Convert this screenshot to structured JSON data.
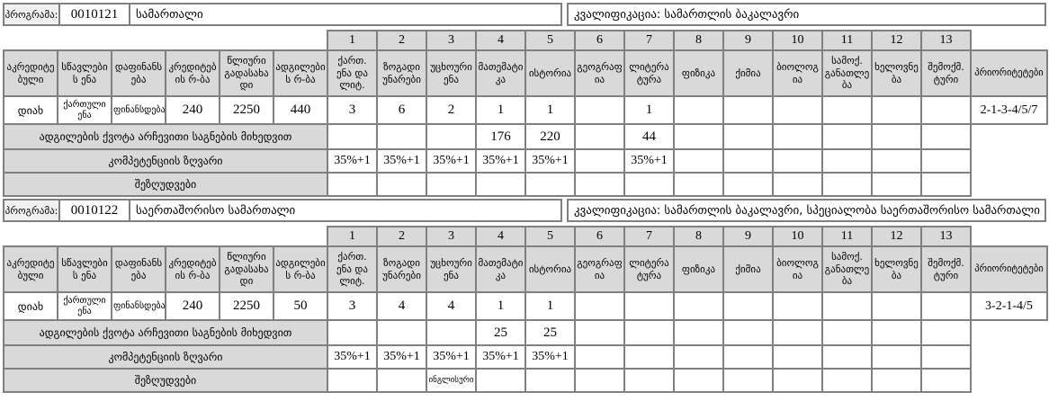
{
  "colors": {
    "header_cell_bg": "#d9d9d9",
    "program_label_bg": "#f0f0f0",
    "grid_border": "#808080",
    "cell_bg": "#ffffff",
    "text": "#000000"
  },
  "columns": {
    "info_headers": [
      "აკრედიტებული",
      "სწავლების ენა",
      "დაფინანსება",
      "კრედიტების რ-ბა",
      "წლიური გადასახადი",
      "ადგილების რ-ბა"
    ],
    "subject_numbers": [
      "1",
      "2",
      "3",
      "4",
      "5",
      "6",
      "7",
      "8",
      "9",
      "10",
      "11",
      "12",
      "13"
    ],
    "subject_headers": [
      "ქართ. ენა და ლიტ.",
      "ზოგადი უნარები",
      "უცხოური ენა",
      "მათემატიკა",
      "ისტორია",
      "გეოგრაფია",
      "ლიტერატურა",
      "ფიზიკა",
      "ქიმია",
      "ბიოლოგია",
      "სამოქ. განათლება",
      "ხელოვნება",
      "შემოქმ. ტური"
    ],
    "priorities_header": "პრიორიტეტები"
  },
  "row_labels": {
    "quota": "ადგილების ქვოტა არჩევითი საგნების მიხედვით",
    "threshold": "კომპეტენციის ზღვარი",
    "restrictions": "შეზღუდვები"
  },
  "tables": [
    {
      "program_label": "პროგრამა:",
      "code": "0010121",
      "name": "სამართალი",
      "qualification": "კვალიფიკაცია: სამართლის ბაკალავრი",
      "info_values": [
        "დიახ",
        "ქართული ენა",
        "ფინანსდება",
        "240",
        "2250",
        "440"
      ],
      "subject_values": [
        "3",
        "6",
        "2",
        "1",
        "1",
        "",
        "1",
        "",
        "",
        "",
        "",
        "",
        ""
      ],
      "priorities": "2-1-3-4/5/7",
      "quota_values": [
        "",
        "",
        "",
        "176",
        "220",
        "",
        "44",
        "",
        "",
        "",
        "",
        "",
        ""
      ],
      "threshold_values": [
        "35%+1",
        "35%+1",
        "35%+1",
        "35%+1",
        "35%+1",
        "",
        "35%+1",
        "",
        "",
        "",
        "",
        "",
        ""
      ],
      "restrictions_values": [
        "",
        "",
        "",
        "",
        "",
        "",
        "",
        "",
        "",
        "",
        "",
        "",
        ""
      ]
    },
    {
      "program_label": "პროგრამა:",
      "code": "0010122",
      "name": "საერთაშორისო სამართალი",
      "qualification": "კვალიფიკაცია: სამართლის ბაკალავრი, სპეციალობა საერთაშორისო სამართალი",
      "info_values": [
        "დიახ",
        "ქართული ენა",
        "ფინანსდება",
        "240",
        "2250",
        "50"
      ],
      "subject_values": [
        "3",
        "4",
        "4",
        "1",
        "1",
        "",
        "",
        "",
        "",
        "",
        "",
        "",
        ""
      ],
      "priorities": "3-2-1-4/5",
      "quota_values": [
        "",
        "",
        "",
        "25",
        "25",
        "",
        "",
        "",
        "",
        "",
        "",
        "",
        ""
      ],
      "threshold_values": [
        "35%+1",
        "35%+1",
        "35%+1",
        "35%+1",
        "35%+1",
        "",
        "",
        "",
        "",
        "",
        "",
        "",
        ""
      ],
      "restrictions_values": [
        "",
        "",
        "ინგლისური",
        "",
        "",
        "",
        "",
        "",
        "",
        "",
        "",
        "",
        ""
      ]
    }
  ]
}
